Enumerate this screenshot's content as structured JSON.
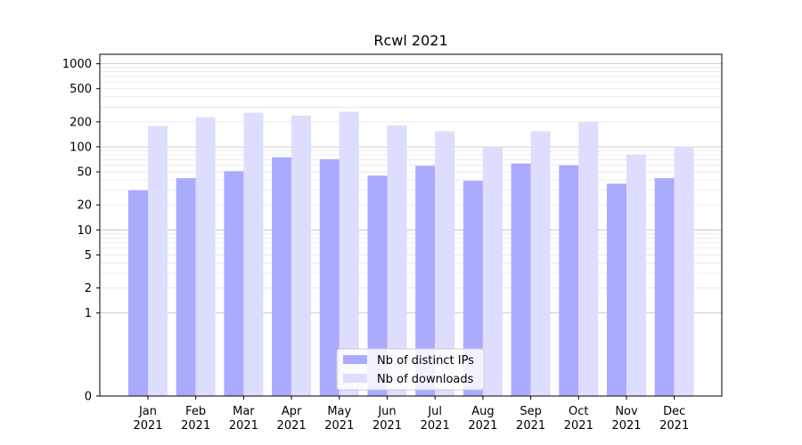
{
  "chart_data": {
    "type": "bar",
    "title": "Rcwl 2021",
    "xlabel": "",
    "ylabel": "",
    "yscale": "symlog",
    "ylim": [
      0,
      1300
    ],
    "y_ticks": [
      "0",
      "1",
      "2",
      "5",
      "10",
      "20",
      "50",
      "100",
      "200",
      "500",
      "1000"
    ],
    "grid": "horizontal",
    "legend_position": "bottom-center",
    "categories": [
      "Jan",
      "Feb",
      "Mar",
      "Apr",
      "May",
      "Jun",
      "Jul",
      "Aug",
      "Sep",
      "Oct",
      "Nov",
      "Dec"
    ],
    "category_year": "2021",
    "series": [
      {
        "name": "Nb of distinct IPs",
        "color": "#aaaaff",
        "values": [
          30,
          42,
          51,
          75,
          71,
          45,
          59,
          39,
          63,
          60,
          36,
          42
        ]
      },
      {
        "name": "Nb of downloads",
        "color": "#ddddff",
        "values": [
          178,
          227,
          257,
          238,
          265,
          181,
          154,
          101,
          154,
          199,
          81,
          101
        ]
      }
    ]
  }
}
